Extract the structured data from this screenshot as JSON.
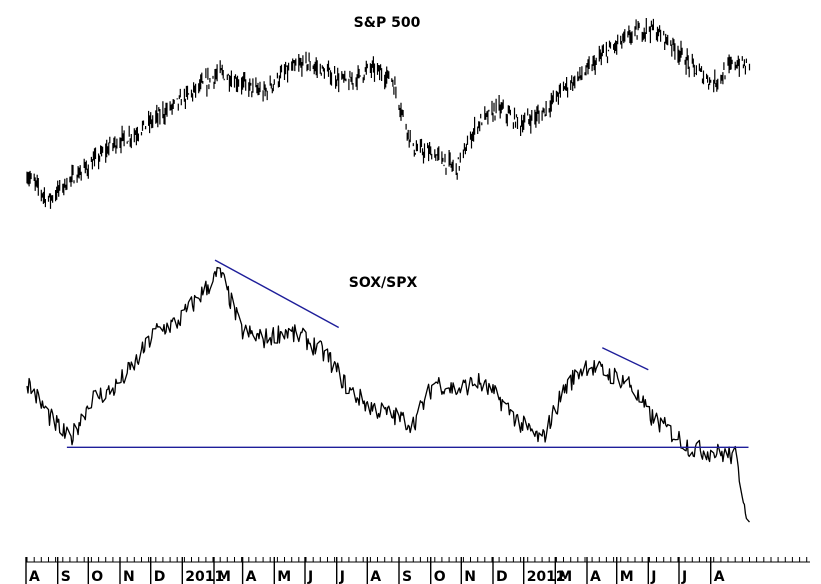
{
  "chart_data": [
    {
      "type": "line",
      "title": "S&P 500",
      "xlabel": "",
      "ylabel": "",
      "grid": false,
      "legend": "none",
      "line_color": "#000000",
      "x": [
        "2010-08-02",
        "2010-08-23",
        "2010-09-13",
        "2010-10-04",
        "2010-10-25",
        "2010-11-15",
        "2010-12-06",
        "2010-12-27",
        "2011-01-17",
        "2011-02-07",
        "2011-02-28",
        "2011-03-21",
        "2011-04-11",
        "2011-05-02",
        "2011-05-23",
        "2011-06-13",
        "2011-07-04",
        "2011-07-25",
        "2011-08-15",
        "2011-09-05",
        "2011-09-26",
        "2011-10-17",
        "2011-11-07",
        "2011-11-28",
        "2011-12-19",
        "2012-01-09",
        "2012-01-30",
        "2012-02-20",
        "2012-03-12",
        "2012-04-02",
        "2012-04-23",
        "2012-05-14",
        "2012-06-04",
        "2012-06-25",
        "2012-07-09"
      ],
      "values": [
        1120,
        1070,
        1110,
        1140,
        1180,
        1200,
        1230,
        1260,
        1290,
        1320,
        1300,
        1280,
        1320,
        1340,
        1320,
        1300,
        1330,
        1310,
        1170,
        1160,
        1130,
        1220,
        1250,
        1220,
        1240,
        1290,
        1320,
        1360,
        1390,
        1410,
        1380,
        1330,
        1300,
        1340,
        1330
      ]
    },
    {
      "type": "line",
      "title": "SOX/SPX",
      "xlabel": "",
      "ylabel": "",
      "grid": false,
      "legend": "none",
      "line_color": "#000000",
      "x": [
        "2010-08-02",
        "2010-08-23",
        "2010-09-13",
        "2010-10-04",
        "2010-10-25",
        "2010-11-15",
        "2010-12-06",
        "2010-12-27",
        "2011-01-17",
        "2011-02-07",
        "2011-02-28",
        "2011-03-21",
        "2011-04-11",
        "2011-05-02",
        "2011-05-23",
        "2011-06-13",
        "2011-07-04",
        "2011-07-25",
        "2011-08-15",
        "2011-09-05",
        "2011-09-26",
        "2011-10-17",
        "2011-11-07",
        "2011-11-28",
        "2011-12-19",
        "2012-01-09",
        "2012-01-30",
        "2012-02-20",
        "2012-03-12",
        "2012-04-02",
        "2012-04-23",
        "2012-05-14",
        "2012-06-04",
        "2012-06-25",
        "2012-07-09"
      ],
      "values": [
        0.31,
        0.29,
        0.275,
        0.3,
        0.305,
        0.32,
        0.34,
        0.345,
        0.36,
        0.375,
        0.34,
        0.335,
        0.34,
        0.335,
        0.325,
        0.305,
        0.295,
        0.29,
        0.285,
        0.31,
        0.305,
        0.31,
        0.3,
        0.285,
        0.275,
        0.305,
        0.32,
        0.315,
        0.31,
        0.29,
        0.28,
        0.27,
        0.268,
        0.266,
        0.225
      ],
      "annotations": [
        {
          "type": "trendline",
          "color": "#1e1e9a",
          "from": {
            "x": "2011-02-02",
            "y": 0.382
          },
          "to": {
            "x": "2011-06-03",
            "y": 0.342
          }
        },
        {
          "type": "trendline",
          "color": "#1e1e9a",
          "from": {
            "x": "2012-02-16",
            "y": 0.33
          },
          "to": {
            "x": "2012-04-01",
            "y": 0.317
          }
        },
        {
          "type": "support",
          "color": "#1e1e9a",
          "from": {
            "x": "2010-09-10",
            "y": 0.271
          },
          "to": {
            "x": "2012-07-08",
            "y": 0.271
          }
        }
      ]
    }
  ],
  "x_axis": {
    "month_labels": [
      "A",
      "S",
      "O",
      "N",
      "D",
      "2011",
      "M",
      "A",
      "M",
      "J",
      "J",
      "A",
      "S",
      "O",
      "N",
      "D",
      "2012",
      "M",
      "A",
      "M",
      "J",
      "J",
      "A"
    ]
  }
}
